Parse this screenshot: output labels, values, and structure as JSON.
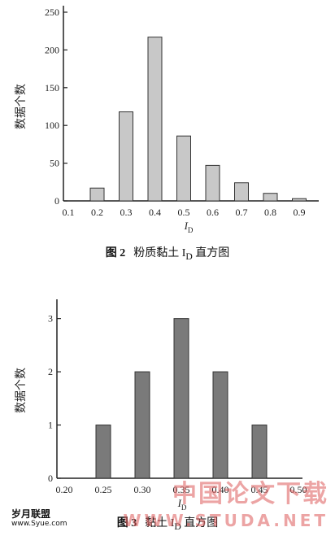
{
  "chart_data": [
    {
      "type": "bar",
      "categories": [
        "0.1",
        "0.2",
        "0.3",
        "0.4",
        "0.5",
        "0.6",
        "0.7",
        "0.8",
        "0.9"
      ],
      "values": [
        0,
        17,
        118,
        217,
        86,
        47,
        24,
        10,
        3
      ],
      "yticks": [
        "0",
        "50",
        "100",
        "150",
        "200",
        "250"
      ],
      "ylim": [
        0,
        250
      ],
      "ylabel": "数据个数",
      "xlabel_main": "I",
      "xlabel_sub": "D",
      "bar_color": "#c8c8c8",
      "caption_num": "图 2",
      "caption_text": "粉质黏土 I",
      "caption_sub": "D",
      "caption_tail": "直方图"
    },
    {
      "type": "bar",
      "categories": [
        "0.20",
        "0.25",
        "0.30",
        "0.35",
        "0.40",
        "0.45",
        "0.50"
      ],
      "values": [
        0,
        1,
        2,
        3,
        2,
        1,
        0
      ],
      "yticks": [
        "0",
        "1",
        "2",
        "3"
      ],
      "ylim": [
        0,
        3.3
      ],
      "ylabel": "数据个数",
      "xlabel_main": "I",
      "xlabel_sub": "D",
      "bar_color": "#7a7a7a",
      "caption_num": "图 3",
      "caption_text": "黏土 I",
      "caption_sub": "D",
      "caption_tail": "直方图"
    }
  ],
  "watermark": {
    "left_main": "岁月联盟",
    "left_sub": "www.Syue.com",
    "right_cn": "中国论文下载",
    "right_url": "WWW.STUDA.NET"
  }
}
